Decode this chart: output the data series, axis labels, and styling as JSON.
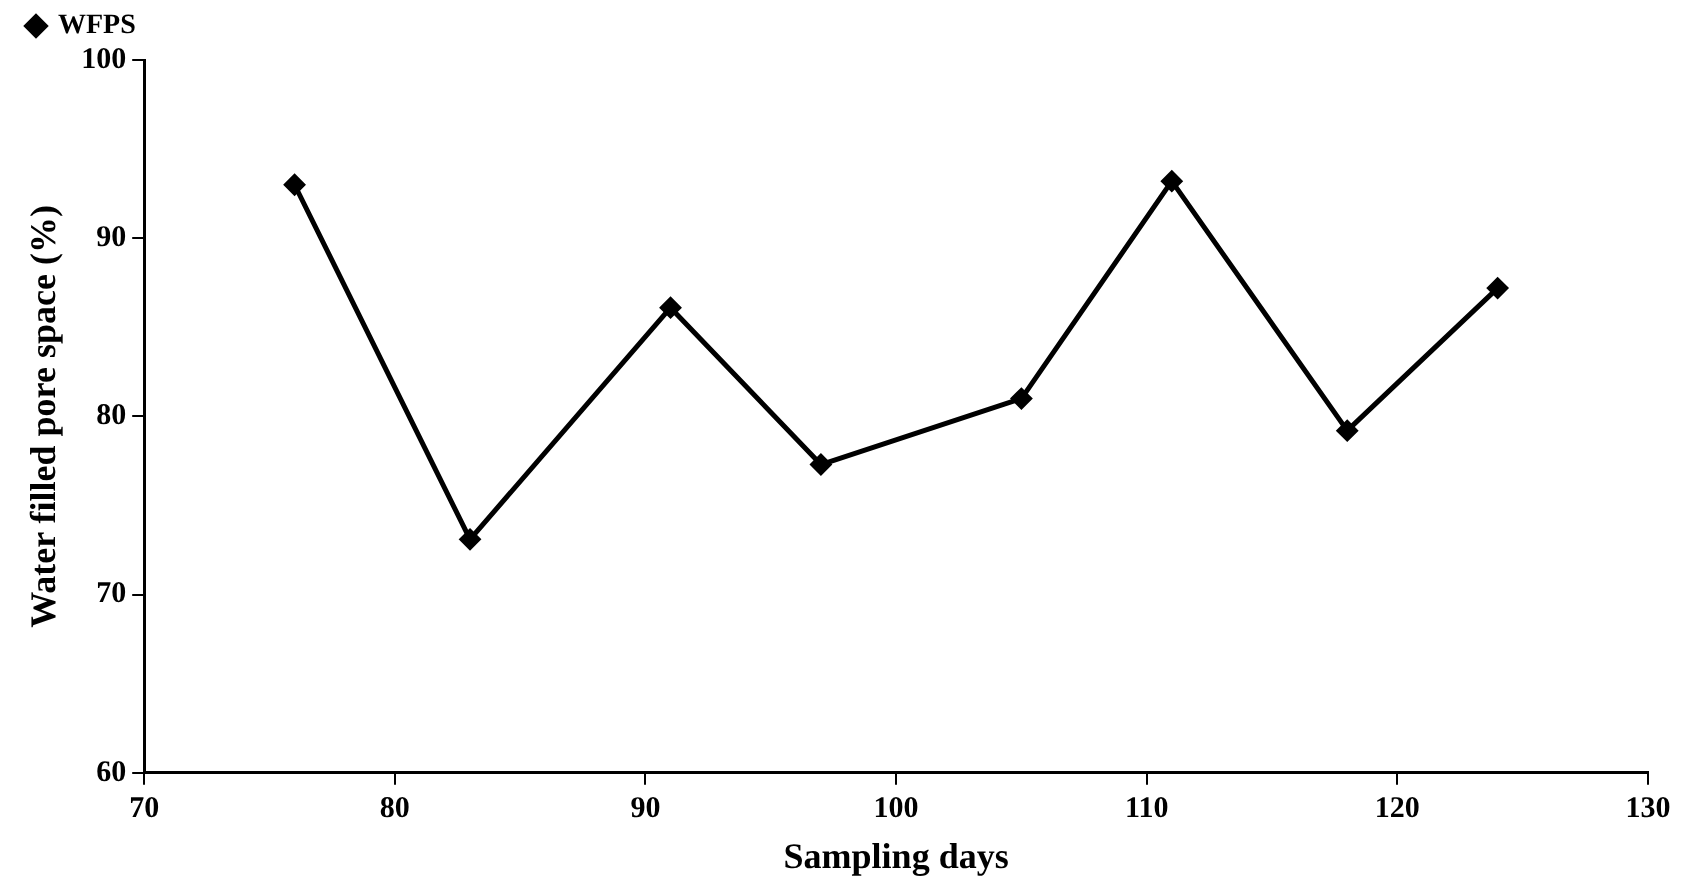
{
  "chart_data": {
    "type": "line",
    "xlabel": "Sampling days",
    "ylabel": "Water filled pore space (%)",
    "x": [
      76,
      83,
      91,
      97,
      105,
      111,
      118,
      124
    ],
    "series": [
      {
        "name": "WFPS",
        "color": "#000000",
        "values": [
          93,
          73.1,
          86.1,
          77.3,
          81,
          93.2,
          79.2,
          87.2
        ]
      }
    ],
    "xlim": [
      70,
      130
    ],
    "xticks": [
      70,
      80,
      90,
      100,
      110,
      120,
      130
    ],
    "ylim": [
      60,
      100
    ],
    "yticks": [
      60,
      70,
      80,
      90,
      100
    ],
    "grid": false,
    "legend": "top left",
    "marker": "diamond",
    "line_style": "solid"
  }
}
